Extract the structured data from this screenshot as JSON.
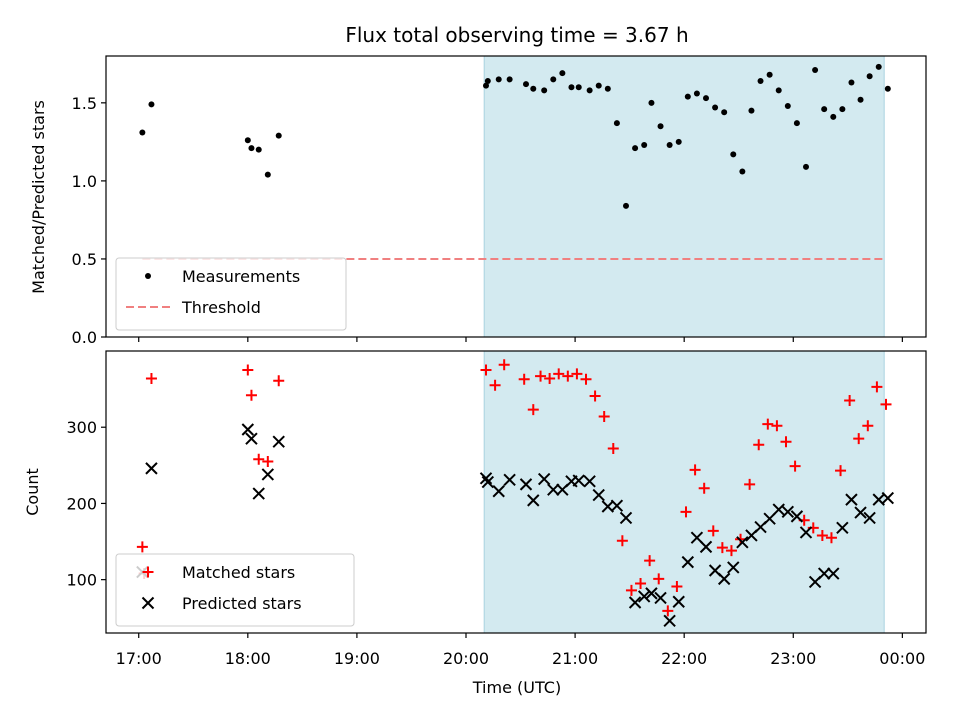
{
  "chart_data": [
    {
      "type": "scatter",
      "title": "Flux total observing time = 3.67 h",
      "xlabel": "",
      "ylabel": "Matched/Predicted stars",
      "xlim": [
        "16:42",
        "00:13"
      ],
      "ylim": [
        0,
        1.8
      ],
      "yticks": [
        0.0,
        0.5,
        1.0,
        1.5
      ],
      "ytick_labels": [
        "0.0",
        "0.5",
        "1.0",
        "1.5"
      ],
      "shaded_span": {
        "from": "20:10",
        "to": "23:50",
        "color": "#d3eaf0"
      },
      "legend": "lower-left",
      "series": [
        {
          "name": "Measurements",
          "marker": "dot",
          "color": "#000000",
          "points": [
            [
              "17:02",
              1.31
            ],
            [
              "17:07",
              1.49
            ],
            [
              "18:00",
              1.26
            ],
            [
              "18:02",
              1.21
            ],
            [
              "18:06",
              1.2
            ],
            [
              "18:11",
              1.04
            ],
            [
              "18:17",
              1.29
            ],
            [
              "20:11",
              1.61
            ],
            [
              "20:12",
              1.64
            ],
            [
              "20:18",
              1.65
            ],
            [
              "20:24",
              1.65
            ],
            [
              "20:33",
              1.62
            ],
            [
              "20:37",
              1.59
            ],
            [
              "20:43",
              1.58
            ],
            [
              "20:48",
              1.65
            ],
            [
              "20:53",
              1.69
            ],
            [
              "20:58",
              1.6
            ],
            [
              "21:02",
              1.6
            ],
            [
              "21:08",
              1.58
            ],
            [
              "21:13",
              1.61
            ],
            [
              "21:18",
              1.59
            ],
            [
              "21:23",
              1.37
            ],
            [
              "21:28",
              0.84
            ],
            [
              "21:33",
              1.21
            ],
            [
              "21:38",
              1.23
            ],
            [
              "21:42",
              1.5
            ],
            [
              "21:47",
              1.35
            ],
            [
              "21:52",
              1.23
            ],
            [
              "21:57",
              1.25
            ],
            [
              "22:02",
              1.54
            ],
            [
              "22:07",
              1.56
            ],
            [
              "22:12",
              1.53
            ],
            [
              "22:17",
              1.47
            ],
            [
              "22:22",
              1.44
            ],
            [
              "22:27",
              1.17
            ],
            [
              "22:32",
              1.06
            ],
            [
              "22:37",
              1.45
            ],
            [
              "22:42",
              1.64
            ],
            [
              "22:47",
              1.68
            ],
            [
              "22:52",
              1.58
            ],
            [
              "22:57",
              1.48
            ],
            [
              "23:02",
              1.37
            ],
            [
              "23:07",
              1.09
            ],
            [
              "23:12",
              1.71
            ],
            [
              "23:17",
              1.46
            ],
            [
              "23:22",
              1.41
            ],
            [
              "23:27",
              1.46
            ],
            [
              "23:32",
              1.63
            ],
            [
              "23:37",
              1.52
            ],
            [
              "23:42",
              1.67
            ],
            [
              "23:47",
              1.73
            ],
            [
              "23:52",
              1.59
            ]
          ]
        },
        {
          "name": "Threshold",
          "marker": "dashed-line",
          "color": "#f08080",
          "points": [
            [
              "17:02",
              0.5
            ],
            [
              "23:50",
              0.5
            ]
          ]
        }
      ]
    },
    {
      "type": "scatter",
      "title": "",
      "xlabel": "Time (UTC)",
      "ylabel": "Count",
      "xlim": [
        "16:42",
        "00:13"
      ],
      "ylim": [
        30,
        400
      ],
      "yticks": [
        100,
        200,
        300
      ],
      "ytick_labels": [
        "100",
        "200",
        "300"
      ],
      "xticks": [
        "17:00",
        "18:00",
        "19:00",
        "20:00",
        "21:00",
        "22:00",
        "23:00",
        "00:00"
      ],
      "shaded_span": {
        "from": "20:10",
        "to": "23:50",
        "color": "#d3eaf0"
      },
      "legend": "lower-left",
      "series": [
        {
          "name": "Matched stars",
          "marker": "plus",
          "color": "#ff0000",
          "points": [
            [
              "17:02",
              143
            ],
            [
              "17:03",
              108
            ],
            [
              "17:07",
              364
            ],
            [
              "18:00",
              375
            ],
            [
              "18:02",
              342
            ],
            [
              "18:06",
              258
            ],
            [
              "18:11",
              255
            ],
            [
              "18:17",
              361
            ],
            [
              "20:11",
              375
            ],
            [
              "20:16",
              355
            ],
            [
              "20:21",
              382
            ],
            [
              "20:32",
              363
            ],
            [
              "20:37",
              323
            ],
            [
              "20:41",
              367
            ],
            [
              "20:46",
              364
            ],
            [
              "20:51",
              370
            ],
            [
              "20:56",
              367
            ],
            [
              "21:01",
              370
            ],
            [
              "21:06",
              363
            ],
            [
              "21:11",
              341
            ],
            [
              "21:16",
              314
            ],
            [
              "21:21",
              272
            ],
            [
              "21:26",
              151
            ],
            [
              "21:31",
              86
            ],
            [
              "21:36",
              95
            ],
            [
              "21:41",
              125
            ],
            [
              "21:46",
              101
            ],
            [
              "21:51",
              59
            ],
            [
              "21:56",
              91
            ],
            [
              "22:01",
              189
            ],
            [
              "22:06",
              244
            ],
            [
              "22:11",
              220
            ],
            [
              "22:16",
              164
            ],
            [
              "22:21",
              142
            ],
            [
              "22:26",
              138
            ],
            [
              "22:31",
              153
            ],
            [
              "22:36",
              225
            ],
            [
              "22:41",
              277
            ],
            [
              "22:46",
              304
            ],
            [
              "22:51",
              302
            ],
            [
              "22:56",
              281
            ],
            [
              "23:01",
              249
            ],
            [
              "23:06",
              178
            ],
            [
              "23:11",
              168
            ],
            [
              "23:16",
              158
            ],
            [
              "23:21",
              155
            ],
            [
              "23:26",
              243
            ],
            [
              "23:31",
              335
            ],
            [
              "23:36",
              285
            ],
            [
              "23:41",
              302
            ],
            [
              "23:46",
              353
            ],
            [
              "23:51",
              330
            ]
          ]
        },
        {
          "name": "Predicted stars",
          "marker": "x",
          "color": "#000000",
          "points": [
            [
              "17:02",
              110
            ],
            [
              "17:07",
              246
            ],
            [
              "18:00",
              297
            ],
            [
              "18:02",
              285
            ],
            [
              "18:06",
              213
            ],
            [
              "18:11",
              238
            ],
            [
              "18:17",
              281
            ],
            [
              "20:11",
              233
            ],
            [
              "20:12",
              228
            ],
            [
              "20:18",
              216
            ],
            [
              "20:24",
              231
            ],
            [
              "20:33",
              225
            ],
            [
              "20:37",
              204
            ],
            [
              "20:43",
              232
            ],
            [
              "20:48",
              218
            ],
            [
              "20:53",
              218
            ],
            [
              "20:58",
              229
            ],
            [
              "21:02",
              230
            ],
            [
              "21:08",
              229
            ],
            [
              "21:13",
              211
            ],
            [
              "21:18",
              196
            ],
            [
              "21:23",
              197
            ],
            [
              "21:28",
              181
            ],
            [
              "21:33",
              70
            ],
            [
              "21:38",
              78
            ],
            [
              "21:42",
              82
            ],
            [
              "21:47",
              76
            ],
            [
              "21:52",
              46
            ],
            [
              "21:57",
              71
            ],
            [
              "22:02",
              123
            ],
            [
              "22:07",
              155
            ],
            [
              "22:12",
              143
            ],
            [
              "22:17",
              112
            ],
            [
              "22:22",
              101
            ],
            [
              "22:27",
              116
            ],
            [
              "22:32",
              149
            ],
            [
              "22:37",
              158
            ],
            [
              "22:42",
              169
            ],
            [
              "22:47",
              180
            ],
            [
              "22:52",
              192
            ],
            [
              "22:57",
              189
            ],
            [
              "23:02",
              183
            ],
            [
              "23:07",
              162
            ],
            [
              "23:12",
              97
            ],
            [
              "23:17",
              108
            ],
            [
              "23:22",
              108
            ],
            [
              "23:27",
              168
            ],
            [
              "23:32",
              205
            ],
            [
              "23:37",
              188
            ],
            [
              "23:42",
              181
            ],
            [
              "23:47",
              205
            ],
            [
              "23:52",
              207
            ]
          ]
        }
      ]
    }
  ]
}
